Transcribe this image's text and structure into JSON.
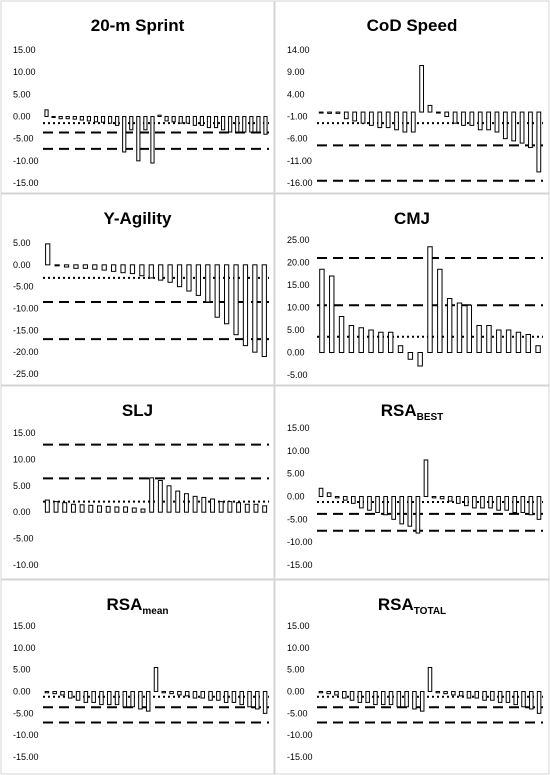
{
  "chart_data": [
    {
      "type": "bar",
      "title": "20-m Sprint",
      "title_sub": "",
      "y_ticks": [
        "15.00",
        "10.00",
        "5.00",
        "0.00",
        "-5.00",
        "-10.00",
        "-15.00"
      ],
      "ylim": [
        -15,
        15
      ],
      "values": [
        1.5,
        -0.2,
        -0.5,
        -0.5,
        -0.6,
        -0.8,
        -1.0,
        -1.2,
        -1.3,
        -1.5,
        -2.0,
        -8.0,
        -3.0,
        -10.0,
        -3.0,
        -10.5,
        0.3,
        -1.0,
        -1.2,
        -1.5,
        -1.5,
        -2.0,
        -2.0,
        -2.5,
        -2.5,
        -3.0,
        -3.5,
        -3.5,
        -3.5,
        -3.5,
        -3.5,
        -4.0
      ],
      "ref_lines": [
        {
          "style": "dotted",
          "value": -1.5
        },
        {
          "style": "dashed",
          "value": -3.6
        },
        {
          "style": "dashed",
          "value": -7.3
        }
      ]
    },
    {
      "type": "bar",
      "title": "CoD Speed",
      "title_sub": "",
      "y_ticks": [
        "14.00",
        "9.00",
        "4.00",
        "-1.00",
        "-6.00",
        "-11.00",
        "-16.00"
      ],
      "ylim": [
        -16,
        14
      ],
      "values": [
        -0.2,
        -0.3,
        -0.3,
        -1.5,
        -2.0,
        -2.5,
        -3.0,
        -3.5,
        -3.5,
        -4.0,
        -4.5,
        -4.5,
        10.5,
        1.5,
        -0.2,
        -1.0,
        -2.5,
        -3.0,
        -3.0,
        -4.0,
        -4.0,
        -4.5,
        -6.0,
        -6.5,
        -7.0,
        -8.0,
        -13.5
      ],
      "ref_lines": [
        {
          "style": "dotted",
          "value": -2.5
        },
        {
          "style": "dashed",
          "value": -7.5
        },
        {
          "style": "dashed",
          "value": -15.5
        }
      ]
    },
    {
      "type": "bar",
      "title": "Y-Agility",
      "title_sub": "",
      "y_ticks": [
        "5.00",
        "0.00",
        "-5.00",
        "-10.00",
        "-15.00",
        "-20.00",
        "-25.00"
      ],
      "ylim": [
        -25,
        5
      ],
      "values": [
        4.8,
        -0.2,
        -0.5,
        -0.8,
        -0.8,
        -1.0,
        -1.2,
        -1.5,
        -1.8,
        -2.0,
        -2.5,
        -3.0,
        -3.5,
        -4.0,
        -5.0,
        -6.0,
        -7.0,
        -8.5,
        -12.0,
        -13.5,
        -16.0,
        -18.5,
        -20.0,
        -21.0
      ],
      "ref_lines": [
        {
          "style": "dotted",
          "value": -3.0
        },
        {
          "style": "dashed",
          "value": -8.5
        },
        {
          "style": "dashed",
          "value": -17.0
        }
      ]
    },
    {
      "type": "bar",
      "title": "CMJ",
      "title_sub": "",
      "y_ticks": [
        "25.00",
        "20.00",
        "15.00",
        "10.00",
        "5.00",
        "0.00",
        "-5.00"
      ],
      "ylim": [
        -5,
        25
      ],
      "values": [
        18.5,
        17.0,
        8.0,
        6.0,
        5.5,
        5.0,
        4.5,
        4.5,
        1.5,
        -1.5,
        -3.0,
        23.5,
        18.5,
        12.0,
        11.0,
        10.5,
        6.0,
        6.0,
        5.0,
        5.0,
        4.5,
        4.0,
        1.5
      ],
      "ref_lines": [
        {
          "style": "dotted",
          "value": 3.5
        },
        {
          "style": "dashed",
          "value": 10.5
        },
        {
          "style": "dashed",
          "value": 21.0
        }
      ]
    },
    {
      "type": "bar",
      "title": "SLJ",
      "title_sub": "",
      "y_ticks": [
        "15.00",
        "10.00",
        "5.00",
        "0.00",
        "-5.00",
        "-10.00"
      ],
      "ylim": [
        -10,
        15
      ],
      "values": [
        2.3,
        2.0,
        1.8,
        1.5,
        1.4,
        1.3,
        1.2,
        1.1,
        1.0,
        1.0,
        0.8,
        0.6,
        6.5,
        6.0,
        5.0,
        4.0,
        3.5,
        3.0,
        2.8,
        2.5,
        2.0,
        2.0,
        1.8,
        1.5,
        1.5,
        1.2
      ],
      "ref_lines": [
        {
          "style": "dotted",
          "value": 2.0
        },
        {
          "style": "dashed",
          "value": 6.4
        },
        {
          "style": "dashed",
          "value": 12.8
        }
      ]
    },
    {
      "type": "bar",
      "title": "RSA",
      "title_sub": "BEST",
      "y_ticks": [
        "15.00",
        "10.00",
        "5.00",
        "0.00",
        "-5.00",
        "-10.00",
        "-15.00"
      ],
      "ylim": [
        -15,
        15
      ],
      "values": [
        1.8,
        0.8,
        -0.3,
        -0.8,
        -1.5,
        -2.5,
        -3.0,
        -3.5,
        -4.0,
        -5.0,
        -6.0,
        -6.5,
        -8.0,
        8.0,
        -0.3,
        -0.5,
        -1.0,
        -1.5,
        -2.0,
        -2.5,
        -2.5,
        -2.5,
        -3.0,
        -3.0,
        -3.5,
        -3.5,
        -4.0,
        -5.0
      ],
      "ref_lines": [
        {
          "style": "dotted",
          "value": -1.2
        },
        {
          "style": "dashed",
          "value": -3.8
        },
        {
          "style": "dashed",
          "value": -7.5
        }
      ]
    },
    {
      "type": "bar",
      "title": "RSA",
      "title_sub": "mean",
      "y_ticks": [
        "15.00",
        "10.00",
        "5.00",
        "0.00",
        "-5.00",
        "-10.00",
        "-15.00"
      ],
      "ylim": [
        -15,
        15
      ],
      "values": [
        -0.3,
        -0.5,
        -0.8,
        -1.5,
        -2.0,
        -2.5,
        -2.5,
        -3.0,
        -3.0,
        -3.0,
        -3.5,
        -3.5,
        -4.0,
        -4.5,
        5.5,
        -0.3,
        -0.5,
        -0.8,
        -1.0,
        -1.5,
        -1.5,
        -2.0,
        -2.0,
        -2.5,
        -2.5,
        -3.0,
        -3.5,
        -4.0,
        -5.0
      ],
      "ref_lines": [
        {
          "style": "dotted",
          "value": -1.2
        },
        {
          "style": "dashed",
          "value": -3.6
        },
        {
          "style": "dashed",
          "value": -7.1
        }
      ]
    },
    {
      "type": "bar",
      "title": "RSA",
      "title_sub": "TOTAL",
      "y_ticks": [
        "15.00",
        "10.00",
        "5.00",
        "0.00",
        "-5.00",
        "-10.00",
        "-15.00"
      ],
      "ylim": [
        -15,
        15
      ],
      "values": [
        -0.3,
        -0.5,
        -0.8,
        -1.5,
        -2.0,
        -2.5,
        -2.5,
        -3.0,
        -3.0,
        -3.0,
        -3.5,
        -3.5,
        -4.0,
        -4.5,
        5.5,
        -0.3,
        -0.5,
        -0.8,
        -1.0,
        -1.5,
        -1.5,
        -2.0,
        -2.0,
        -2.5,
        -2.5,
        -3.0,
        -3.5,
        -4.0,
        -5.0
      ],
      "ref_lines": [
        {
          "style": "dotted",
          "value": -1.2
        },
        {
          "style": "dashed",
          "value": -3.6
        },
        {
          "style": "dashed",
          "value": -7.1
        }
      ]
    }
  ]
}
